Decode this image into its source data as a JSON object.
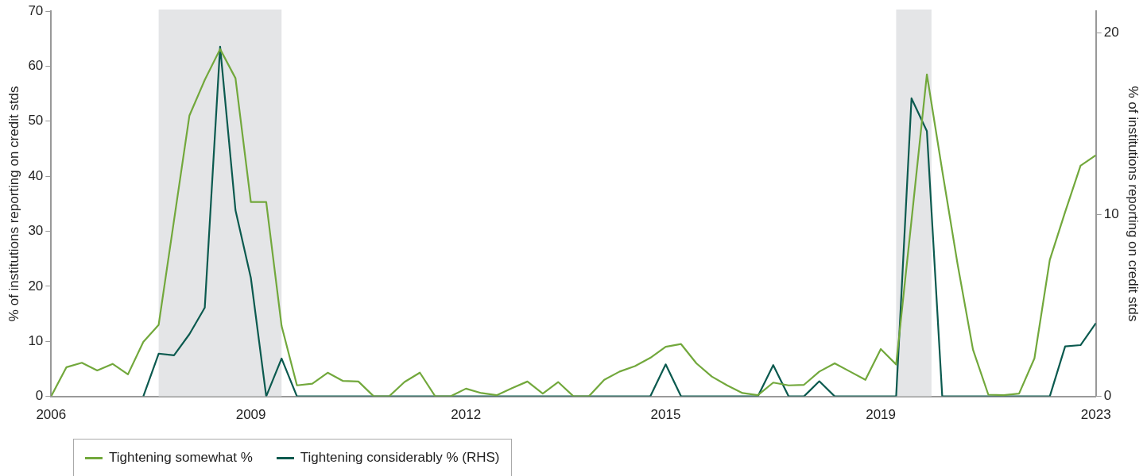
{
  "chart_data": {
    "type": "line",
    "ylabel": "% of institutions reporting on credit stds",
    "y2label": "% of institutions reporting on credit stds",
    "categories": [
      "2006",
      null,
      null,
      null,
      null,
      null,
      null,
      null,
      null,
      null,
      null,
      null,
      null,
      "2009",
      null,
      null,
      null,
      null,
      null,
      null,
      null,
      null,
      null,
      null,
      null,
      null,
      null,
      "2012",
      null,
      null,
      null,
      null,
      null,
      null,
      null,
      null,
      null,
      null,
      null,
      null,
      "2015",
      null,
      null,
      null,
      null,
      null,
      null,
      null,
      null,
      null,
      null,
      null,
      null,
      null,
      "2019",
      null,
      null,
      null,
      null,
      null,
      null,
      null,
      null,
      null,
      null,
      null,
      null,
      null,
      "2023"
    ],
    "series": [
      {
        "name": "Tightening somewhat %",
        "color": "#72a83c",
        "values": [
          0,
          5.3,
          6.1,
          4.7,
          5.9,
          4.0,
          9.9,
          13.0,
          32,
          51.0,
          57.5,
          63.1,
          57.8,
          35.3,
          35.3,
          12.8,
          2.0,
          2.3,
          4.3,
          2.8,
          2.7,
          0,
          0,
          2.6,
          4.3,
          0,
          0,
          1.4,
          0.6,
          0.2,
          1.5,
          2.7,
          0.5,
          2.6,
          0,
          0,
          3.0,
          4.5,
          5.5,
          7.0,
          9.0,
          9.5,
          6.0,
          3.6,
          2.0,
          0.6,
          0.2,
          2.5,
          2.0,
          2.1,
          4.5,
          6.0,
          4.5,
          3.0,
          8.6,
          5.8,
          32,
          58.5,
          41,
          24,
          8.5,
          0.3,
          0.2,
          0.5,
          6.9,
          24.8,
          33.5,
          41.9,
          43.8
        ]
      },
      {
        "name": "Tightening considerably % (RHS)",
        "color": "#0b5a4f",
        "axis": "y2",
        "values": [
          null,
          null,
          null,
          null,
          null,
          null,
          0,
          2.35,
          2.26,
          3.42,
          4.88,
          19.24,
          10.24,
          6.52,
          0,
          2.08,
          0,
          0,
          0,
          0,
          0,
          0,
          0,
          0,
          0,
          0,
          0,
          0,
          0,
          0,
          0,
          0,
          0,
          0,
          0,
          0,
          0,
          0,
          0,
          0,
          1.76,
          0,
          0,
          0,
          0,
          0,
          0,
          1.72,
          0,
          0,
          0.83,
          0,
          0,
          0,
          0,
          0,
          16.4,
          14.6,
          0,
          0,
          0,
          0,
          0,
          0,
          0,
          0,
          2.75,
          2.82,
          4.03
        ]
      }
    ],
    "ylim": [
      0,
      70
    ],
    "yticks": [
      0,
      10,
      20,
      30,
      40,
      50,
      60,
      70
    ],
    "y2lim": [
      0,
      21.2
    ],
    "y2ticks": [
      0,
      10,
      20
    ],
    "grid": false,
    "legend": "bottom left",
    "marker": "none",
    "line_style": "solid"
  }
}
